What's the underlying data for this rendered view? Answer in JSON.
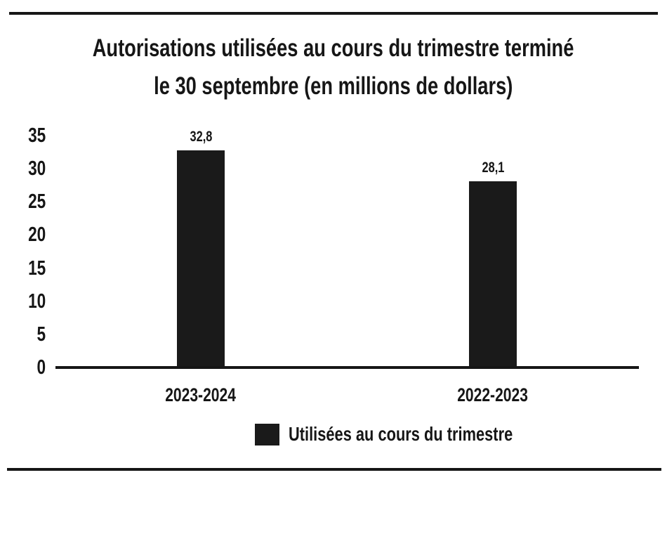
{
  "page": {
    "background": "#ffffff",
    "ink_color": "#161616"
  },
  "chart_data": {
    "type": "bar",
    "title": "Autorisations utilisées au cours du trimestre terminé le 30 septembre (en millions de dollars)",
    "title_line1": "Autorisations utilisées au cours du trimestre terminé",
    "title_line2": "le 30 septembre (en millions de dollars)",
    "categories": [
      "2023-2024",
      "2022-2023"
    ],
    "values": [
      32.8,
      28.1
    ],
    "value_labels": [
      "32,8",
      "28,1"
    ],
    "series": [
      {
        "name": "Utilisées au cours du trimestre",
        "values": [
          32.8,
          28.1
        ]
      }
    ],
    "legend": {
      "label": "Utilisées au cours du trimestre",
      "position": "bottom",
      "swatch_color": "#1a1a1a"
    },
    "xlabel": "",
    "ylabel": "",
    "ylim": [
      0,
      35
    ],
    "yticks": [
      0,
      5,
      10,
      15,
      20,
      25,
      30,
      35
    ],
    "grid": false,
    "bar_color": "#1a1a1a"
  }
}
